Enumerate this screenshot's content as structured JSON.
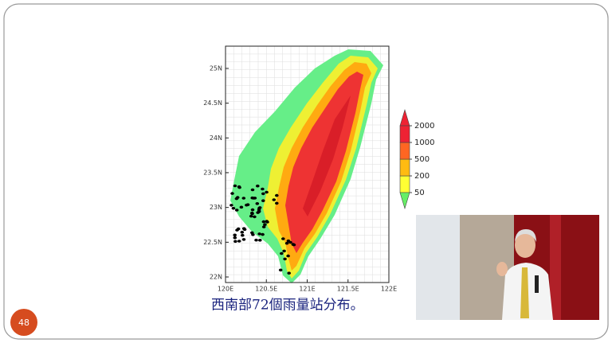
{
  "slide_number": "48",
  "caption": "西南部72個雨量站分布。",
  "map": {
    "lon_range": [
      120,
      122
    ],
    "lat_range": [
      21.92,
      25.32
    ],
    "x_ticks": [
      {
        "value": 120,
        "label": "120E"
      },
      {
        "value": 120.5,
        "label": "120.5E"
      },
      {
        "value": 121,
        "label": "121E"
      },
      {
        "value": 121.5,
        "label": "121.5E"
      },
      {
        "value": 122,
        "label": "122E"
      }
    ],
    "y_ticks": [
      {
        "value": 22,
        "label": "22N"
      },
      {
        "value": 22.5,
        "label": "22.5N"
      },
      {
        "value": 23,
        "label": "23N"
      },
      {
        "value": 23.5,
        "label": "23.5N"
      },
      {
        "value": 24,
        "label": "24N"
      },
      {
        "value": 24.5,
        "label": "24.5N"
      },
      {
        "value": 25,
        "label": "25N"
      }
    ]
  },
  "colorbar": {
    "levels": [
      50,
      200,
      500,
      1000,
      2000
    ],
    "colors": [
      "#66ee66",
      "#ffff33",
      "#ffbb11",
      "#ff6622",
      "#ee2233"
    ]
  }
}
